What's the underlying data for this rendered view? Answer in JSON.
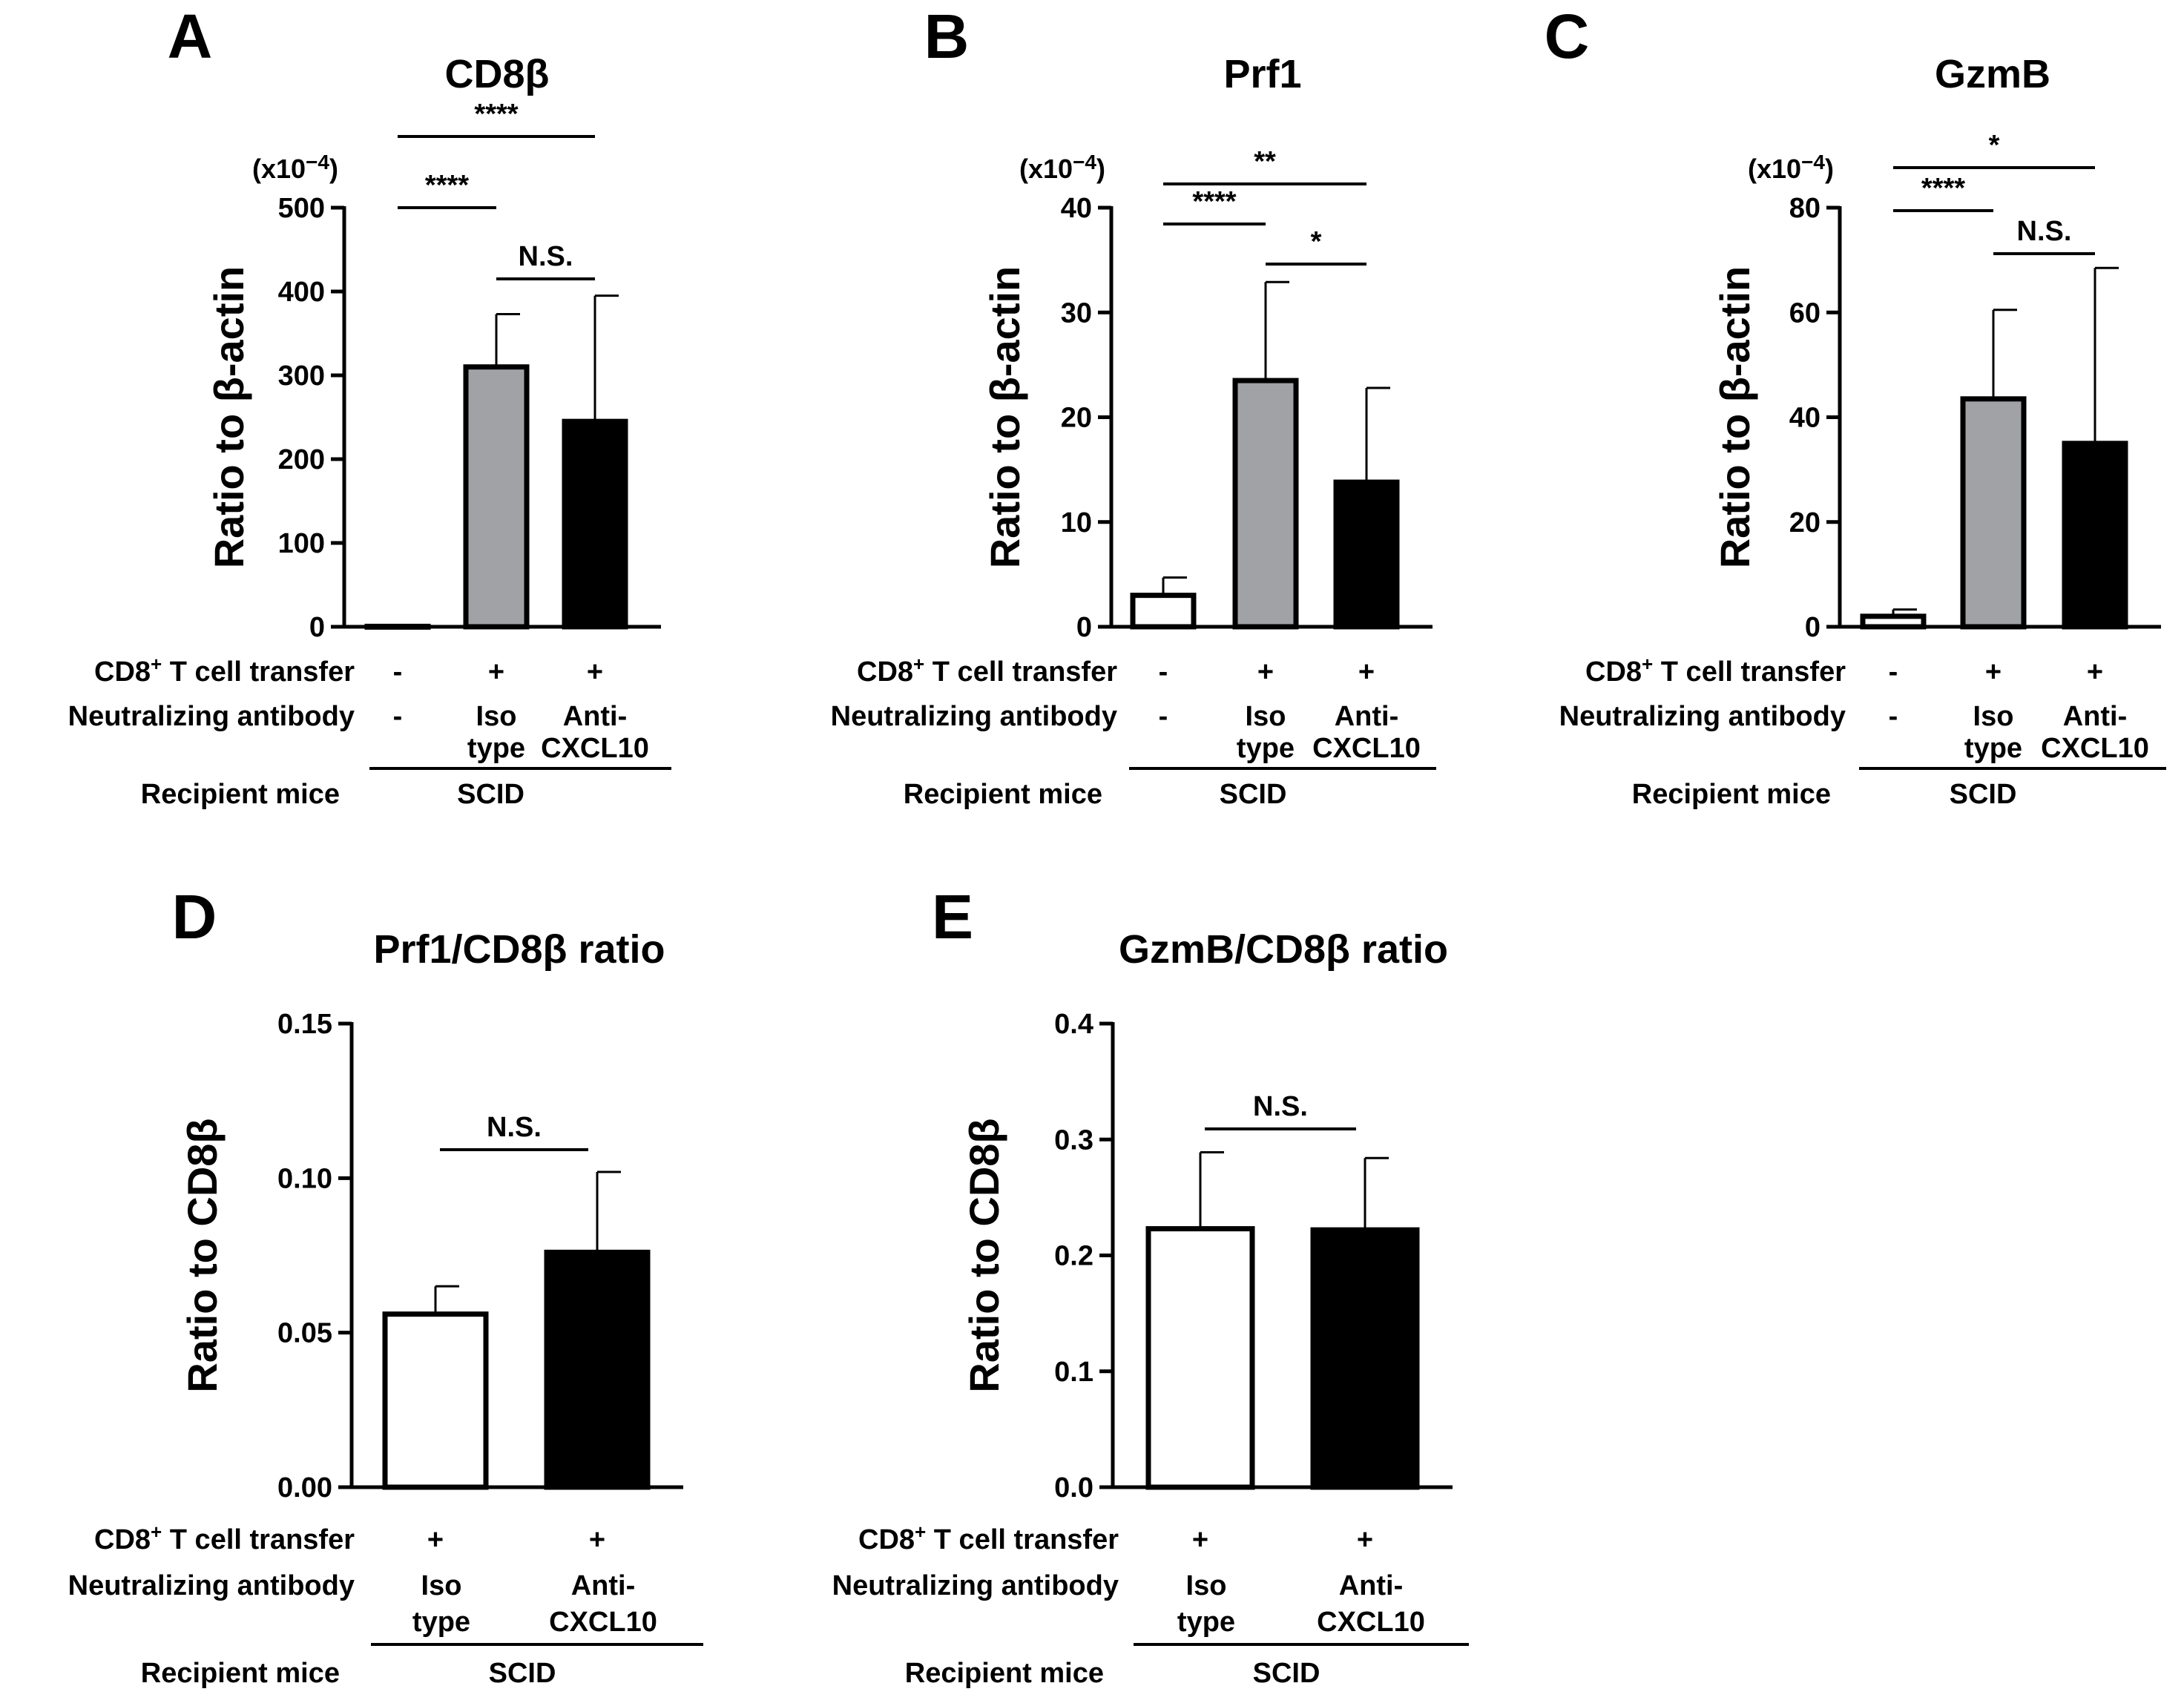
{
  "figure": {
    "row_labels": {
      "transfer_prefix": "CD8",
      "transfer_sup": "+",
      "transfer_suffix": " T cell transfer",
      "antibody": "Neutralizing antibody",
      "recipient": "Recipient mice"
    },
    "group_name": "SCID",
    "multiplier_text": "(x10",
    "multiplier_exp": "−4",
    "multiplier_close": ")"
  },
  "chart_data": [
    {
      "panel": "A",
      "type": "bar",
      "title": "CD8β",
      "ylabel": "Ratio to β-actin",
      "ylim": [
        0,
        500
      ],
      "yticks": [
        "0",
        "100",
        "200",
        "300",
        "400",
        "500"
      ],
      "show_multiplier": true,
      "categories": [
        "None",
        "Isotype",
        "Anti-CXCL10"
      ],
      "values": [
        0.5,
        310,
        245
      ],
      "errors": [
        0,
        63,
        150
      ],
      "colors": [
        "#ffffff",
        "#a1a2a6",
        "#000000"
      ],
      "transfer": [
        "-",
        "+",
        "+"
      ],
      "antibody_line1": [
        "-",
        "Iso",
        "Anti-"
      ],
      "antibody_line2": [
        "",
        "type",
        "CXCL10"
      ],
      "significance": [
        {
          "from": 0,
          "to": 2,
          "label": "****",
          "level": 2
        },
        {
          "from": 0,
          "to": 1,
          "label": "****",
          "level": 1
        },
        {
          "from": 1,
          "to": 2,
          "label": "N.S.",
          "level": 0
        }
      ]
    },
    {
      "panel": "B",
      "type": "bar",
      "title": "Prf1",
      "ylabel": "Ratio to β-actin",
      "ylim": [
        0,
        40
      ],
      "yticks": [
        "0",
        "10",
        "20",
        "30",
        "40"
      ],
      "show_multiplier": true,
      "categories": [
        "None",
        "Isotype",
        "Anti-CXCL10"
      ],
      "values": [
        3,
        23.5,
        13.8
      ],
      "errors": [
        1.7,
        9.4,
        9
      ],
      "colors": [
        "#ffffff",
        "#a1a2a6",
        "#000000"
      ],
      "transfer": [
        "-",
        "+",
        "+"
      ],
      "antibody_line1": [
        "-",
        "Iso",
        "Anti-"
      ],
      "antibody_line2": [
        "",
        "type",
        "CXCL10"
      ],
      "significance": [
        {
          "from": 0,
          "to": 2,
          "label": "**",
          "level": 2
        },
        {
          "from": 0,
          "to": 1,
          "label": "****",
          "level": 1
        },
        {
          "from": 1,
          "to": 2,
          "label": "*",
          "level": 0
        }
      ]
    },
    {
      "panel": "C",
      "type": "bar",
      "title": "GzmB",
      "ylabel": "Ratio to β-actin",
      "ylim": [
        0,
        80
      ],
      "yticks": [
        "0",
        "20",
        "40",
        "60",
        "80"
      ],
      "show_multiplier": true,
      "categories": [
        "None",
        "Isotype",
        "Anti-CXCL10"
      ],
      "values": [
        2,
        43.5,
        35
      ],
      "errors": [
        1.3,
        17,
        33.5
      ],
      "colors": [
        "#ffffff",
        "#a1a2a6",
        "#000000"
      ],
      "transfer": [
        "-",
        "+",
        "+"
      ],
      "antibody_line1": [
        "-",
        "Iso",
        "Anti-"
      ],
      "antibody_line2": [
        "",
        "type",
        "CXCL10"
      ],
      "significance": [
        {
          "from": 0,
          "to": 2,
          "label": "*",
          "level": 2
        },
        {
          "from": 0,
          "to": 1,
          "label": "****",
          "level": 1
        },
        {
          "from": 1,
          "to": 2,
          "label": "N.S.",
          "level": 0
        }
      ]
    },
    {
      "panel": "D",
      "type": "bar",
      "title": "Prf1/CD8β ratio",
      "ylabel": "Ratio to CD8β",
      "ylim": [
        0,
        0.15
      ],
      "yticks": [
        "0.00",
        "0.05",
        "0.10",
        "0.15"
      ],
      "show_multiplier": false,
      "categories": [
        "Isotype",
        "Anti-CXCL10"
      ],
      "values": [
        0.056,
        0.076
      ],
      "errors": [
        0.009,
        0.026
      ],
      "colors": [
        "#ffffff",
        "#000000"
      ],
      "transfer": [
        "+",
        "+"
      ],
      "antibody_line1": [
        "Iso",
        "Anti-"
      ],
      "antibody_line2": [
        "type",
        "CXCL10"
      ],
      "significance": [
        {
          "from": 0,
          "to": 1,
          "label": "N.S.",
          "level": 0
        }
      ]
    },
    {
      "panel": "E",
      "type": "bar",
      "title": "GzmB/CD8β ratio",
      "ylabel": "Ratio to CD8β",
      "ylim": [
        0,
        0.4
      ],
      "yticks": [
        "0.0",
        "0.1",
        "0.2",
        "0.3",
        "0.4"
      ],
      "show_multiplier": false,
      "categories": [
        "Isotype",
        "Anti-CXCL10"
      ],
      "values": [
        0.223,
        0.222
      ],
      "errors": [
        0.066,
        0.062
      ],
      "colors": [
        "#ffffff",
        "#000000"
      ],
      "transfer": [
        "+",
        "+"
      ],
      "antibody_line1": [
        "Iso",
        "Anti-"
      ],
      "antibody_line2": [
        "type",
        "CXCL10"
      ],
      "significance": [
        {
          "from": 0,
          "to": 1,
          "label": "N.S.",
          "level": 0
        }
      ]
    }
  ]
}
